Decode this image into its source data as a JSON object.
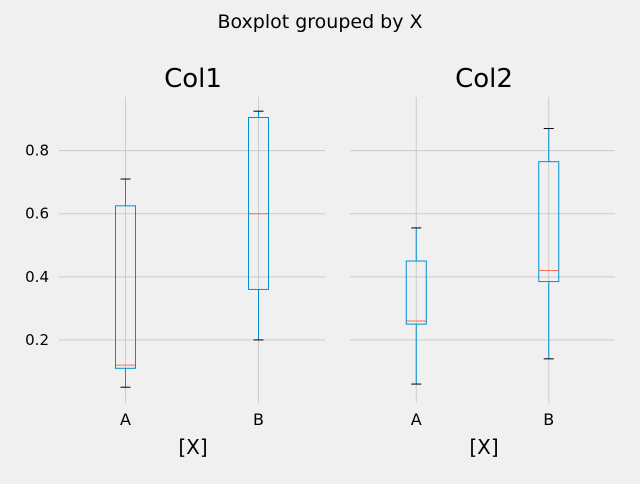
{
  "figure": {
    "suptitle": "Boxplot grouped by X",
    "background": "#f0f0f0",
    "box_color": "#008fd5",
    "median_color": "#fc4f30",
    "grid_color": "#cbcbcb"
  },
  "chart_data": [
    {
      "type": "box",
      "title": "Col1",
      "xlabel": "[X]",
      "ylabel": "",
      "categories": [
        "A",
        "B"
      ],
      "yticks": [
        "0.2",
        "0.4",
        "0.6",
        "0.8"
      ],
      "ylim": [
        0.0,
        0.97
      ],
      "grid": true,
      "boxes": [
        {
          "category": "A",
          "whisker_low": 0.05,
          "q1": 0.11,
          "median": 0.12,
          "q3": 0.625,
          "whisker_high": 0.71
        },
        {
          "category": "B",
          "whisker_low": 0.2,
          "q1": 0.36,
          "median": 0.6,
          "q3": 0.905,
          "whisker_high": 0.925
        }
      ]
    },
    {
      "type": "box",
      "title": "Col2",
      "xlabel": "[X]",
      "ylabel": "",
      "categories": [
        "A",
        "B"
      ],
      "yticks": [
        "0.2",
        "0.4",
        "0.6",
        "0.8"
      ],
      "ylim": [
        0.0,
        0.97
      ],
      "grid": true,
      "boxes": [
        {
          "category": "A",
          "whisker_low": 0.06,
          "q1": 0.25,
          "median": 0.26,
          "q3": 0.45,
          "whisker_high": 0.555
        },
        {
          "category": "B",
          "whisker_low": 0.14,
          "q1": 0.385,
          "median": 0.42,
          "q3": 0.765,
          "whisker_high": 0.87
        }
      ]
    }
  ]
}
